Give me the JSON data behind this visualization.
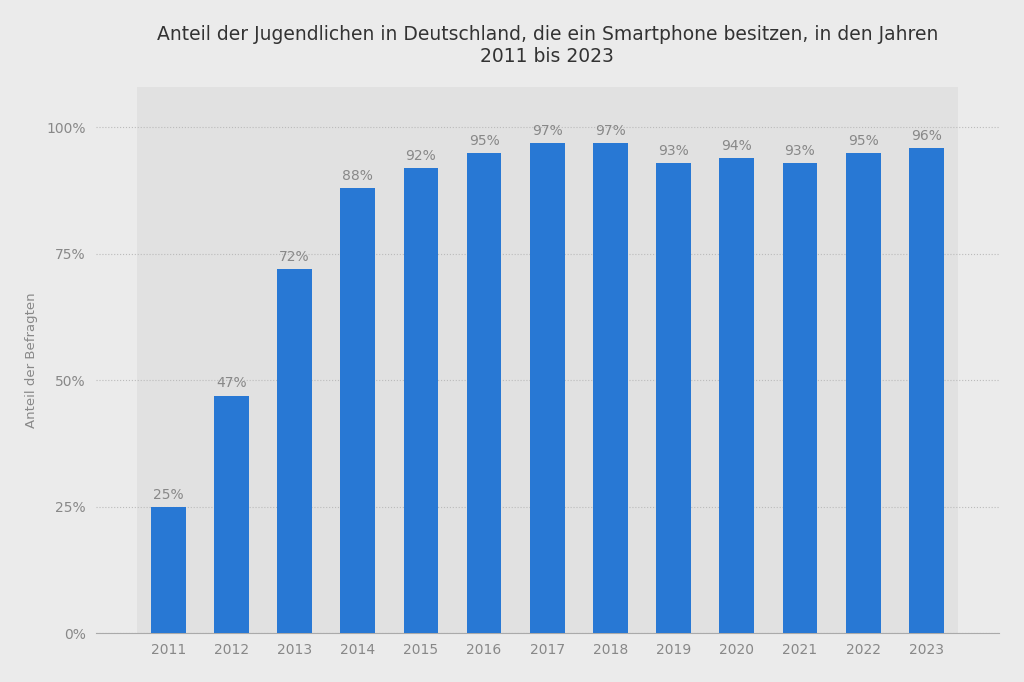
{
  "years": [
    2011,
    2012,
    2013,
    2014,
    2015,
    2016,
    2017,
    2018,
    2019,
    2020,
    2021,
    2022,
    2023
  ],
  "values": [
    25,
    47,
    72,
    88,
    92,
    95,
    97,
    97,
    93,
    94,
    93,
    95,
    96
  ],
  "bar_color": "#2878d4",
  "title_line1": "Anteil der Jugendlichen in Deutschland, die ein Smartphone besitzen, in den Jahren",
  "title_line2": "2011 bis 2023",
  "ylabel": "Anteil der Befragten",
  "background_color": "#ebebeb",
  "plot_bg_color": "#ebebeb",
  "ylim": [
    0,
    108
  ],
  "yticks": [
    0,
    25,
    50,
    75,
    100
  ],
  "ytick_labels": [
    "0%",
    "25%",
    "50%",
    "75%",
    "100%"
  ],
  "title_fontsize": 13.5,
  "ylabel_fontsize": 9.5,
  "tick_fontsize": 10,
  "bar_label_fontsize": 10,
  "grid_color": "#bbbbbb",
  "text_color": "#888888",
  "title_color": "#333333",
  "col_separator_color": "#d8d8d8"
}
